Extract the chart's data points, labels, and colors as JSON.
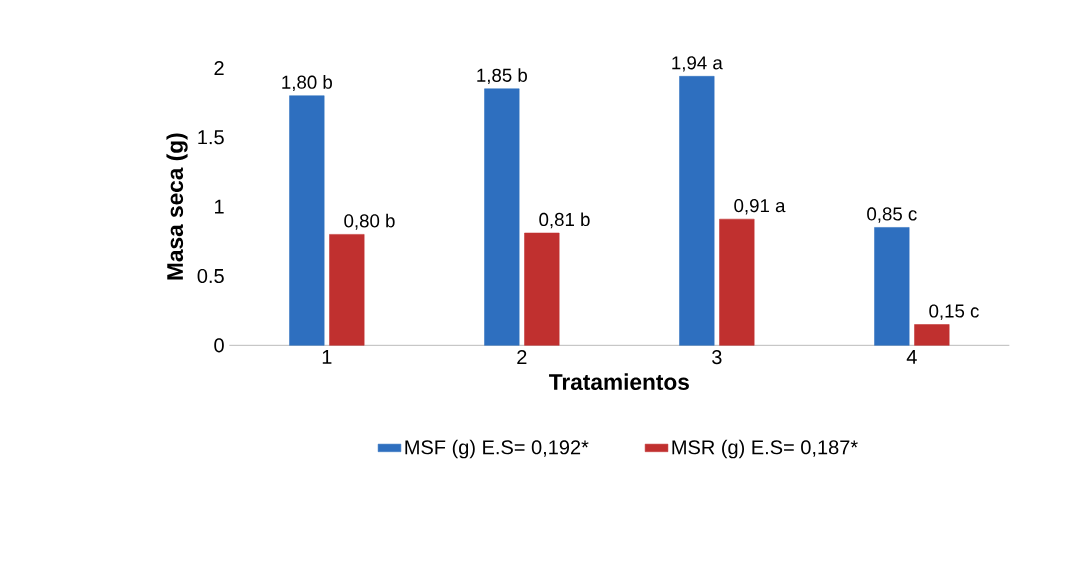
{
  "chart_data": {
    "type": "bar",
    "xlabel": "Tratamientos",
    "ylabel": "Masa seca (g)",
    "categories": [
      "1",
      "2",
      "3",
      "4"
    ],
    "series": [
      {
        "name": "MSF (g) E.S= 0,192*",
        "color": "#2e6fbf",
        "values": [
          1.8,
          1.85,
          1.94,
          0.85
        ],
        "value_labels": [
          "1,80 b",
          "1,85 b",
          "1,94 a",
          "0,85 c"
        ]
      },
      {
        "name": "MSR (g) E.S= 0,187*",
        "color": "#c0302f",
        "values": [
          0.8,
          0.81,
          0.91,
          0.15
        ],
        "value_labels": [
          "0,80 b",
          "0,81 b",
          "0,91 a",
          "0,15 c"
        ]
      }
    ],
    "ylim": [
      0,
      2
    ],
    "yticks": [
      0,
      0.5,
      1,
      1.5,
      2
    ],
    "legend": "bottom",
    "grid": false
  }
}
